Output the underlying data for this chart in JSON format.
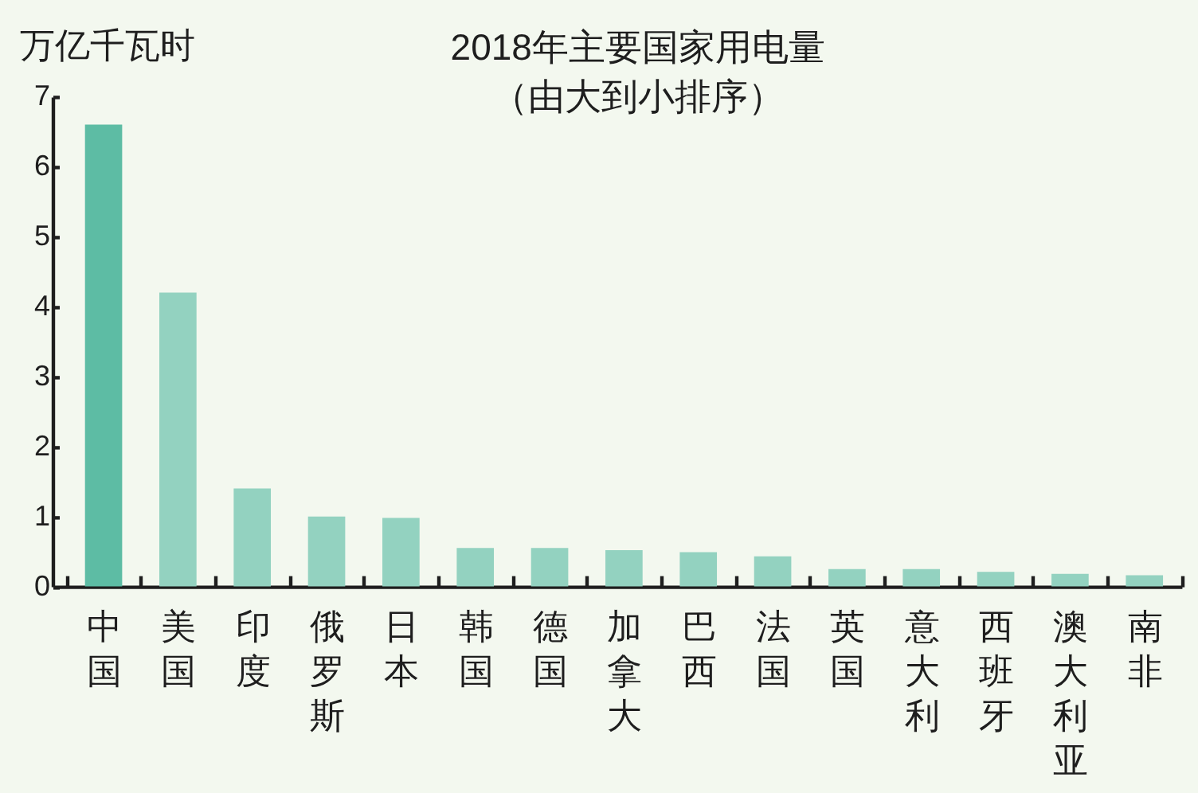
{
  "chart_data": {
    "type": "bar",
    "title": "2018年主要国家用电量",
    "subtitle": "（由大到小排序）",
    "ylabel": "万亿千瓦时",
    "categories": [
      "中国",
      "美国",
      "印度",
      "俄罗斯",
      "日本",
      "韩国",
      "德国",
      "加拿大",
      "巴西",
      "法国",
      "英国",
      "意大利",
      "西班牙",
      "澳大利亚",
      "南非"
    ],
    "values": [
      6.6,
      4.2,
      1.4,
      1.0,
      0.98,
      0.55,
      0.55,
      0.52,
      0.49,
      0.43,
      0.25,
      0.25,
      0.21,
      0.18,
      0.16
    ],
    "colors": [
      "#5dbca4",
      "#93d2c0",
      "#93d2c0",
      "#93d2c0",
      "#93d2c0",
      "#93d2c0",
      "#93d2c0",
      "#93d2c0",
      "#93d2c0",
      "#93d2c0",
      "#93d2c0",
      "#93d2c0",
      "#93d2c0",
      "#93d2c0",
      "#93d2c0"
    ],
    "ylim": [
      0,
      7
    ],
    "yticks": [
      0,
      1,
      2,
      3,
      4,
      5,
      6,
      7
    ]
  }
}
